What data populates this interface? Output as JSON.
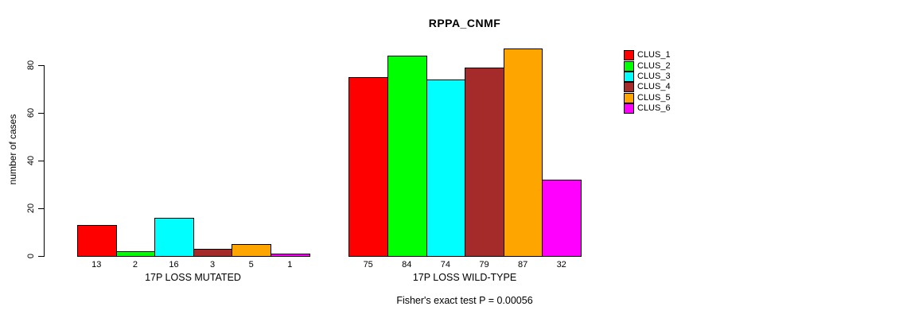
{
  "title": "RPPA_CNMF",
  "chart_data": {
    "type": "bar",
    "title": "RPPA_CNMF",
    "ylabel": "number of cases",
    "xlabel": "",
    "ylim": [
      0,
      87
    ],
    "yticks": [
      0,
      20,
      40,
      60,
      80
    ],
    "grid": false,
    "legend_position": "right",
    "series": [
      {
        "name": "CLUS_1",
        "color": "#FF0000",
        "values": [
          13,
          75
        ]
      },
      {
        "name": "CLUS_2",
        "color": "#00FF00",
        "values": [
          2,
          84
        ]
      },
      {
        "name": "CLUS_3",
        "color": "#00FFFF",
        "values": [
          16,
          74
        ]
      },
      {
        "name": "CLUS_4",
        "color": "#A52A2A",
        "values": [
          3,
          79
        ]
      },
      {
        "name": "CLUS_5",
        "color": "#FFA500",
        "values": [
          5,
          87
        ]
      },
      {
        "name": "CLUS_6",
        "color": "#FF00FF",
        "values": [
          1,
          32
        ]
      }
    ],
    "groups": [
      {
        "label": "17P LOSS MUTATED",
        "values": [
          13,
          2,
          16,
          3,
          5,
          1
        ]
      },
      {
        "label": "17P LOSS WILD-TYPE",
        "values": [
          75,
          84,
          74,
          79,
          87,
          32
        ]
      }
    ],
    "annotation": "Fisher's exact test P = 0.00056"
  }
}
